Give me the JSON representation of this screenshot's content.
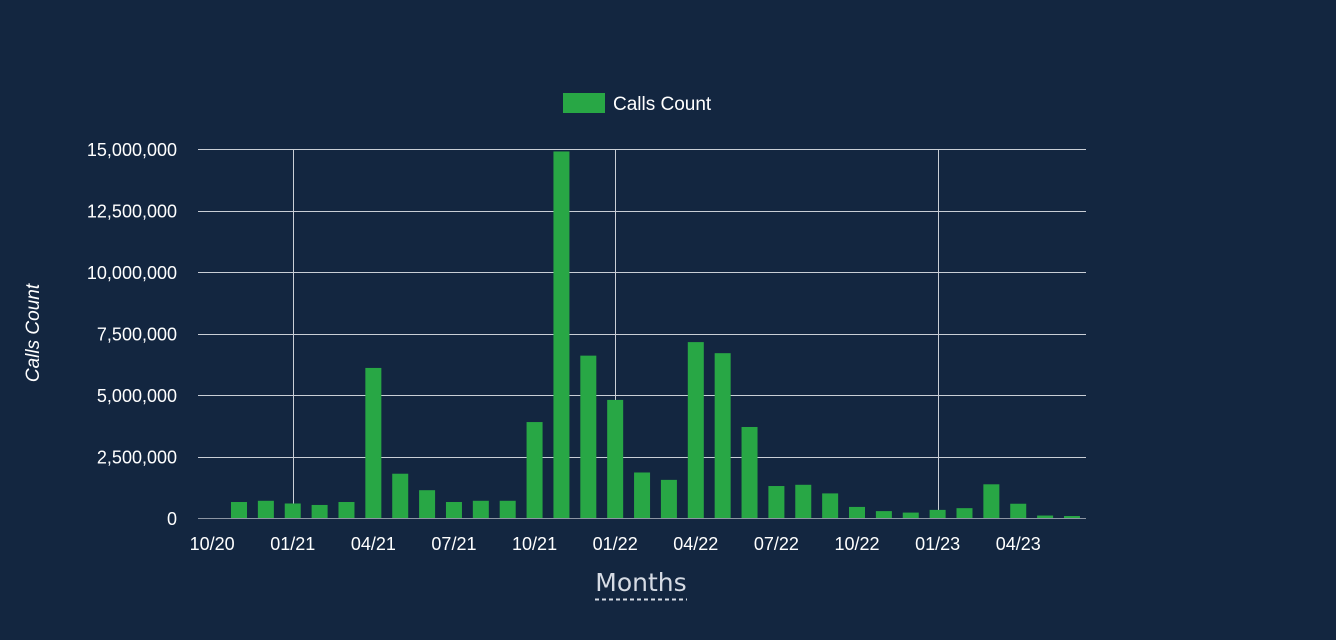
{
  "colors": {
    "background": "#132640",
    "bar": "#28a745",
    "grid": "#c9ced6",
    "axis": "#8c95a3",
    "xlabel": "#d6dbe4"
  },
  "chart_data": {
    "type": "bar",
    "title": "",
    "xlabel": "Months",
    "ylabel": "Calls Count",
    "ylim": [
      0,
      15000000
    ],
    "yticks": [
      0,
      2500000,
      5000000,
      7500000,
      10000000,
      12500000,
      15000000
    ],
    "ytick_labels": [
      "0",
      "2,500,000",
      "5,000,000",
      "7,500,000",
      "10,000,000",
      "12,500,000",
      "15,000,000"
    ],
    "xtick_labels": [
      "10/20",
      "01/21",
      "04/21",
      "07/21",
      "10/21",
      "01/22",
      "04/22",
      "07/22",
      "10/22",
      "01/23",
      "04/23"
    ],
    "vertical_grid_at": [
      "01/21",
      "01/22",
      "01/23"
    ],
    "legend_position": "top-center",
    "grid": true,
    "categories": [
      "2020-11",
      "2020-12",
      "2021-01",
      "2021-02",
      "2021-03",
      "2021-04",
      "2021-05",
      "2021-06",
      "2021-07",
      "2021-08",
      "2021-09",
      "2021-10",
      "2021-11",
      "2021-12",
      "2022-01",
      "2022-02",
      "2022-03",
      "2022-04",
      "2022-05",
      "2022-06",
      "2022-07",
      "2022-08",
      "2022-09",
      "2022-10",
      "2022-11",
      "2022-12",
      "2023-01",
      "2023-02",
      "2023-03",
      "2023-04",
      "2023-05",
      "2023-06"
    ],
    "series": [
      {
        "name": "Calls Count",
        "color": "#28a745",
        "values": [
          650000,
          700000,
          590000,
          530000,
          650000,
          6100000,
          1800000,
          1130000,
          650000,
          700000,
          700000,
          3900000,
          14900000,
          6600000,
          4800000,
          1850000,
          1550000,
          7150000,
          6700000,
          3700000,
          1300000,
          1350000,
          1000000,
          450000,
          280000,
          220000,
          330000,
          400000,
          1370000,
          580000,
          100000,
          80000
        ]
      }
    ]
  }
}
